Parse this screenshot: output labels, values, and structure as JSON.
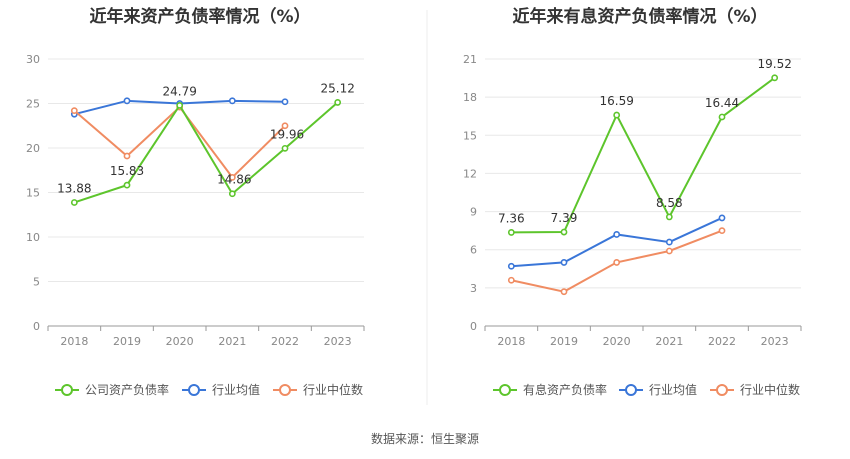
{
  "source_label": "数据来源：恒生聚源",
  "colors": {
    "company": "#5dc52c",
    "avg": "#3a76d8",
    "median": "#f08c62",
    "grid": "#e8e8e8",
    "axis": "#999999"
  },
  "chart_data": [
    {
      "type": "line",
      "title": "近年来资产负债率情况（%）",
      "x": [
        "2018",
        "2019",
        "2020",
        "2021",
        "2022",
        "2023"
      ],
      "ylim": [
        0,
        30
      ],
      "yticks": [
        0,
        5,
        10,
        15,
        20,
        25,
        30
      ],
      "series": [
        {
          "name": "公司资产负债率",
          "color": "#5dc52c",
          "values": [
            13.88,
            15.83,
            24.79,
            14.86,
            19.96,
            25.12
          ],
          "labels": [
            "13.88",
            "15.83",
            "24.79",
            "14.86",
            "19.96",
            "25.12"
          ]
        },
        {
          "name": "行业均值",
          "color": "#3a76d8",
          "values": [
            23.8,
            25.3,
            25.0,
            25.3,
            25.2,
            null
          ]
        },
        {
          "name": "行业中位数",
          "color": "#f08c62",
          "values": [
            24.2,
            19.1,
            24.6,
            16.7,
            22.5,
            null
          ]
        }
      ],
      "grid": true,
      "legend": "bottom"
    },
    {
      "type": "line",
      "title": "近年来有息资产负债率情况（%）",
      "x": [
        "2018",
        "2019",
        "2020",
        "2021",
        "2022",
        "2023"
      ],
      "ylim": [
        0,
        21
      ],
      "yticks": [
        0,
        3,
        6,
        9,
        12,
        15,
        18,
        21
      ],
      "series": [
        {
          "name": "有息资产负债率",
          "color": "#5dc52c",
          "values": [
            7.36,
            7.39,
            16.59,
            8.58,
            16.44,
            19.52
          ],
          "labels": [
            "7.36",
            "7.39",
            "16.59",
            "8.58",
            "16.44",
            "19.52"
          ]
        },
        {
          "name": "行业均值",
          "color": "#3a76d8",
          "values": [
            4.7,
            5.0,
            7.2,
            6.6,
            8.5,
            null
          ]
        },
        {
          "name": "行业中位数",
          "color": "#f08c62",
          "values": [
            3.6,
            2.7,
            5.0,
            5.9,
            7.5,
            null
          ]
        }
      ],
      "grid": true,
      "legend": "bottom"
    }
  ]
}
